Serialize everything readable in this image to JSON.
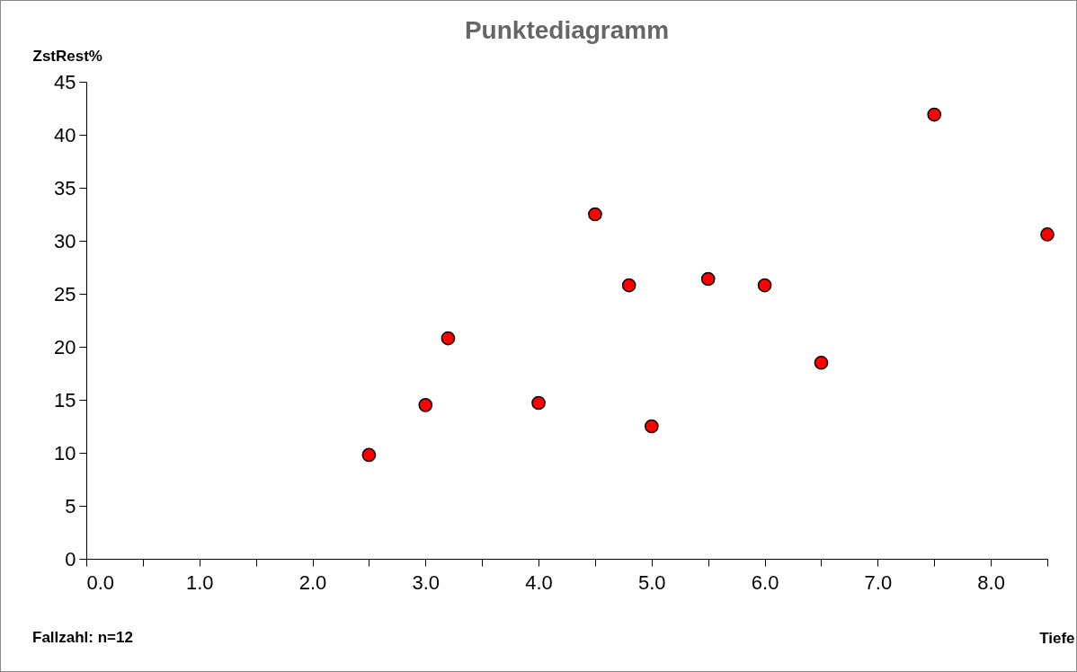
{
  "chart_data": {
    "type": "scatter",
    "title": "Punktediagramm",
    "xlabel": "Tiefe",
    "ylabel": "ZstRest%",
    "annotations": [
      "Fallzahl: n=12"
    ],
    "x": [
      2.5,
      3.0,
      3.2,
      4.0,
      4.5,
      4.8,
      5.0,
      5.5,
      6.0,
      6.5,
      7.5,
      8.5
    ],
    "series": [
      {
        "color": "#ff0000",
        "values": [
          9.8,
          14.5,
          20.8,
          14.7,
          32.5,
          25.8,
          12.5,
          26.4,
          25.8,
          18.5,
          41.9,
          30.6
        ]
      }
    ],
    "xlim": [
      0,
      8.5
    ],
    "ylim": [
      0,
      45
    ],
    "xticks": [
      {
        "value": 0,
        "label": "0.0"
      },
      {
        "value": 0.5,
        "label": null
      },
      {
        "value": 1,
        "label": "1.0"
      },
      {
        "value": 1.5,
        "label": null
      },
      {
        "value": 2,
        "label": "2.0"
      },
      {
        "value": 2.5,
        "label": null
      },
      {
        "value": 3,
        "label": "3.0"
      },
      {
        "value": 3.5,
        "label": null
      },
      {
        "value": 4,
        "label": "4.0"
      },
      {
        "value": 4.5,
        "label": null
      },
      {
        "value": 5,
        "label": "5.0"
      },
      {
        "value": 5.5,
        "label": null
      },
      {
        "value": 6,
        "label": "6.0"
      },
      {
        "value": 6.5,
        "label": null
      },
      {
        "value": 7,
        "label": "7.0"
      },
      {
        "value": 7.5,
        "label": null
      },
      {
        "value": 8,
        "label": "8.0"
      },
      {
        "value": 8.5,
        "label": null
      }
    ],
    "yticks": [
      0,
      5,
      10,
      15,
      20,
      25,
      30,
      35,
      40,
      45
    ],
    "grid": false,
    "marker": "circle"
  }
}
